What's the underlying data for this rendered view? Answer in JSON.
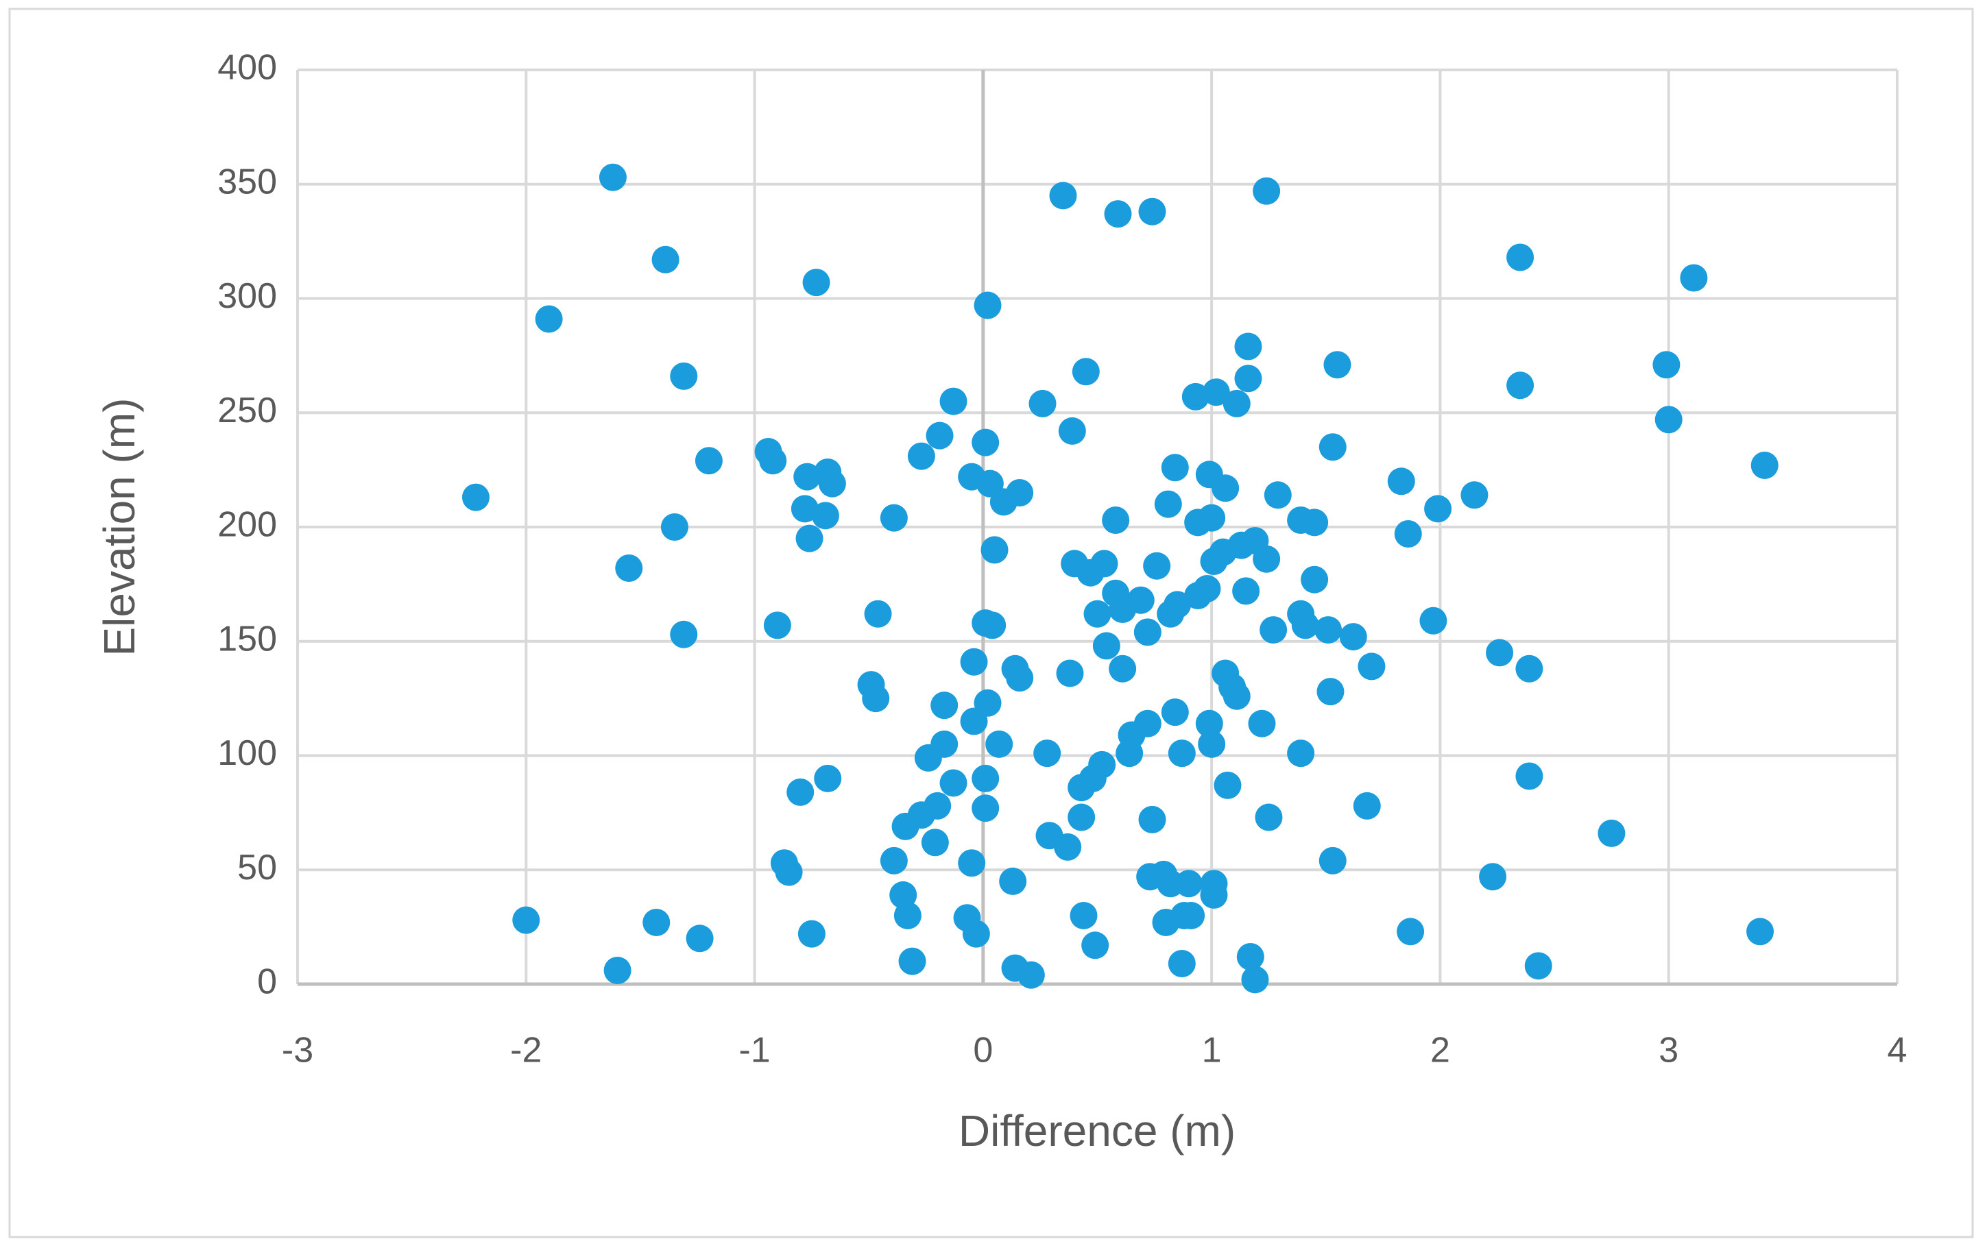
{
  "chart_data": {
    "type": "scatter",
    "x_label": "Difference (m)",
    "y_label": "Elevation (m)",
    "color": "#1b9cdc",
    "grid": true,
    "xlim": [
      -3,
      4
    ],
    "xticks": [
      -3,
      -2,
      -1,
      0,
      1,
      2,
      3,
      4
    ],
    "ylim": [
      0,
      400
    ],
    "yticks": [
      0,
      50,
      100,
      150,
      200,
      250,
      300,
      350,
      400
    ],
    "x": [
      -1.62,
      -1.39,
      -1.9,
      -1.31,
      -2.22,
      -1.2,
      -1.35,
      -1.55,
      -1.31,
      -2.0,
      -1.43,
      -1.24,
      -1.6,
      -0.73,
      -0.94,
      -0.92,
      -0.77,
      -0.68,
      -0.66,
      -0.78,
      -0.69,
      -0.76,
      -0.9,
      -0.39,
      -0.46,
      -0.49,
      -0.47,
      -0.8,
      -0.68,
      -0.87,
      -0.85,
      -0.75,
      -0.39,
      -0.35,
      -0.33,
      -0.31,
      -0.34,
      -0.27,
      -0.2,
      -0.21,
      -0.13,
      -0.19,
      -0.27,
      0.02,
      0.01,
      -0.05,
      0.03,
      0.09,
      0.16,
      0.05,
      0.01,
      0.04,
      -0.04,
      -0.17,
      0.02,
      -0.04,
      -0.17,
      -0.24,
      0.07,
      -0.13,
      0.01,
      0.01,
      -0.05,
      -0.07,
      -0.03,
      0.13,
      0.14,
      0.21,
      0.35,
      0.59,
      0.74,
      1.24,
      0.26,
      0.45,
      0.39,
      0.58,
      0.4,
      0.47,
      0.53,
      0.76,
      0.81,
      0.84,
      0.58,
      0.69,
      0.5,
      0.61,
      0.72,
      0.82,
      0.85,
      0.54,
      0.38,
      0.61,
      0.14,
      0.16,
      0.94,
      0.98,
      0.93,
      1.02,
      1.11,
      1.16,
      1.16,
      0.99,
      1.06,
      0.94,
      1.0,
      1.01,
      1.05,
      1.13,
      1.19,
      1.24,
      1.15,
      1.29,
      1.39,
      1.45,
      1.45,
      1.39,
      1.41,
      1.27,
      1.51,
      1.62,
      1.7,
      1.52,
      1.06,
      1.09,
      1.11,
      0.84,
      0.72,
      0.65,
      0.64,
      0.87,
      0.99,
      1.0,
      1.22,
      1.07,
      1.39,
      1.25,
      0.52,
      0.48,
      0.43,
      0.43,
      0.28,
      0.29,
      0.37,
      0.74,
      0.73,
      0.79,
      0.82,
      0.9,
      1.01,
      1.01,
      0.91,
      0.88,
      0.8,
      0.44,
      0.49,
      0.87,
      1.17,
      1.19,
      1.55,
      1.53,
      1.83,
      1.86,
      1.99,
      2.15,
      1.97,
      2.26,
      2.39,
      2.39,
      1.68,
      1.53,
      2.23,
      1.87,
      2.43,
      2.35,
      2.35,
      2.75,
      2.99,
      3.0,
      3.11,
      3.42,
      3.4
    ],
    "y": [
      353,
      317,
      291,
      266,
      213,
      229,
      200,
      182,
      153,
      28,
      27,
      20,
      6,
      307,
      233,
      229,
      222,
      224,
      219,
      208,
      205,
      195,
      157,
      204,
      162,
      131,
      125,
      84,
      90,
      53,
      49,
      22,
      54,
      39,
      30,
      10,
      69,
      74,
      78,
      62,
      255,
      240,
      231,
      297,
      237,
      222,
      219,
      211,
      215,
      190,
      158,
      157,
      141,
      122,
      123,
      115,
      105,
      99,
      105,
      88,
      90,
      77,
      53,
      29,
      22,
      45,
      7,
      4,
      345,
      337,
      338,
      347,
      254,
      268,
      242,
      203,
      184,
      180,
      184,
      183,
      210,
      226,
      171,
      168,
      162,
      164,
      154,
      162,
      166,
      148,
      136,
      138,
      138,
      134,
      170,
      173,
      257,
      259,
      254,
      265,
      279,
      223,
      217,
      202,
      204,
      185,
      189,
      192,
      194,
      186,
      172,
      214,
      203,
      202,
      177,
      162,
      157,
      155,
      155,
      152,
      139,
      128,
      136,
      130,
      126,
      119,
      114,
      109,
      101,
      101,
      114,
      105,
      114,
      87,
      101,
      73,
      96,
      90,
      86,
      73,
      101,
      65,
      60,
      72,
      47,
      48,
      44,
      44,
      44,
      39,
      30,
      30,
      27,
      30,
      17,
      9,
      12,
      2,
      271,
      235,
      220,
      197,
      208,
      214,
      159,
      145,
      138,
      91,
      78,
      54,
      47,
      23,
      8,
      318,
      262,
      66,
      271,
      247,
      309,
      227,
      23
    ]
  }
}
